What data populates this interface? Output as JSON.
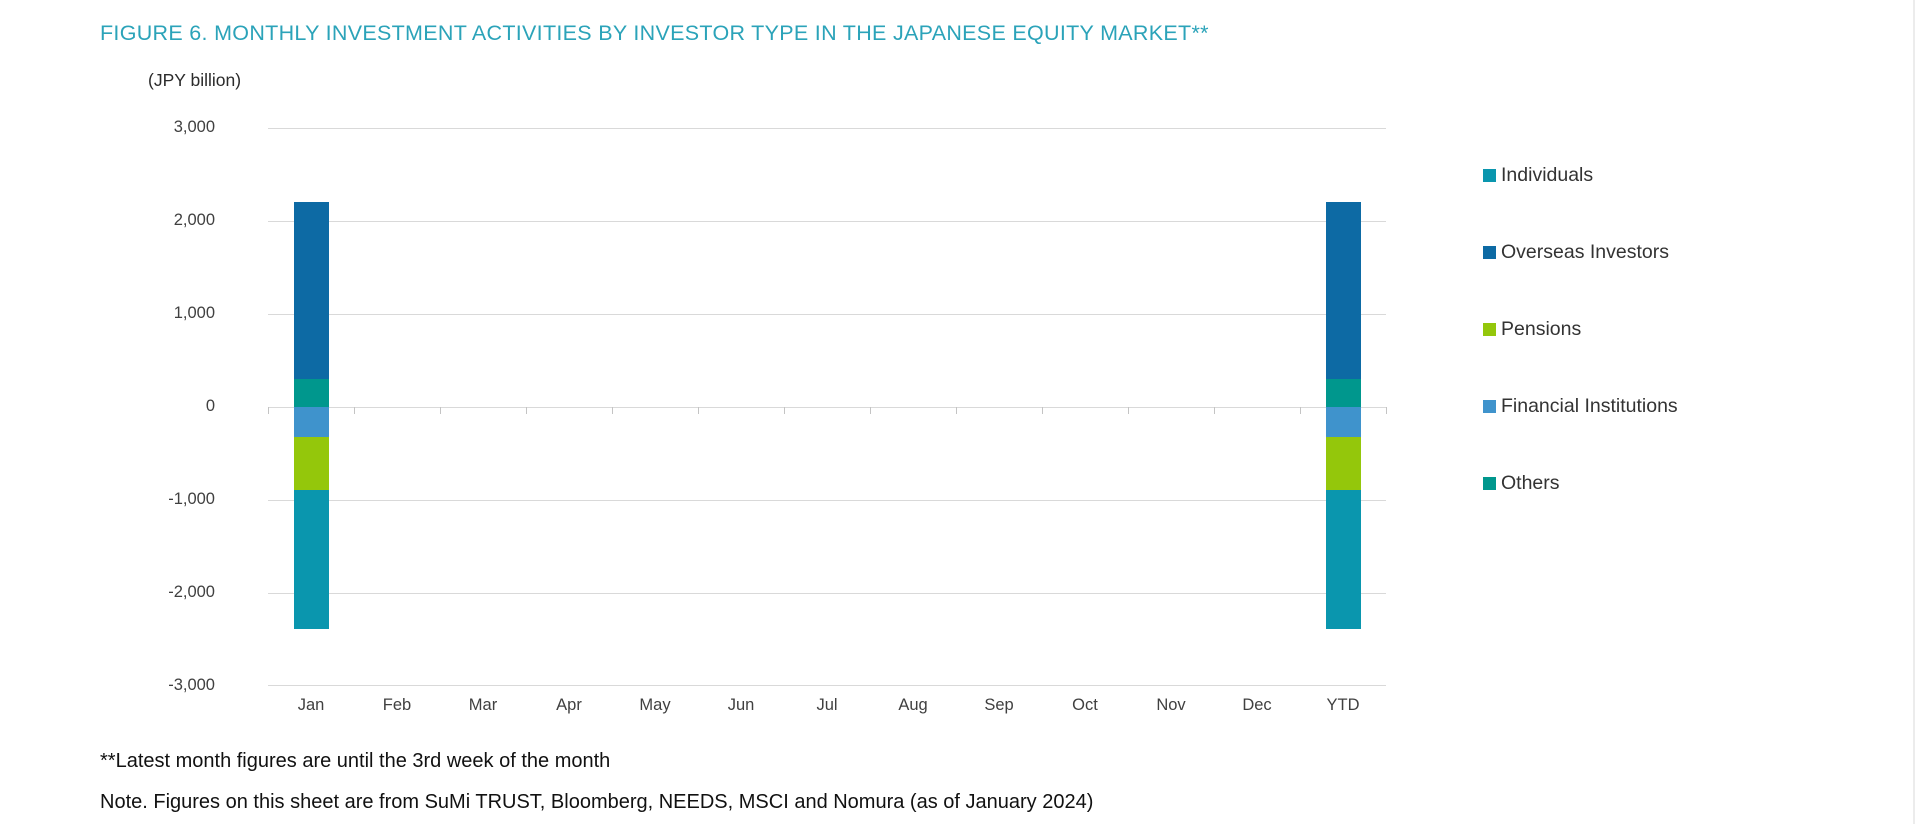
{
  "title": "FIGURE 6. MONTHLY INVESTMENT ACTIVITIES BY INVESTOR TYPE IN THE JAPANESE EQUITY MARKET**",
  "axis_unit_label": "(JPY billion)",
  "footnotes": {
    "line1": "**Latest month figures are until the 3rd week of the month",
    "line2": "Note. Figures on this sheet are from SuMi TRUST, Bloomberg, NEEDS, MSCI and Nomura (as of January 2024)"
  },
  "colors": {
    "title": "#2ba3b9",
    "grid": "#d9d9d9",
    "axis_text": "#404040",
    "legend_text": "#333333"
  },
  "chart_data": {
    "type": "bar",
    "stacked": true,
    "title": "FIGURE 6. MONTHLY INVESTMENT ACTIVITIES BY INVESTOR TYPE IN THE JAPANESE EQUITY MARKET**",
    "ylabel": "(JPY billion)",
    "xlabel": "",
    "categories": [
      "Jan",
      "Feb",
      "Mar",
      "Apr",
      "May",
      "Jun",
      "Jul",
      "Aug",
      "Sep",
      "Oct",
      "Nov",
      "Dec",
      "YTD"
    ],
    "series": [
      {
        "name": "Others",
        "color": "#00978d",
        "values": [
          300,
          0,
          0,
          0,
          0,
          0,
          0,
          0,
          0,
          0,
          0,
          0,
          300
        ]
      },
      {
        "name": "Overseas Investors",
        "color": "#0d6aa4",
        "values": [
          1900,
          0,
          0,
          0,
          0,
          0,
          0,
          0,
          0,
          0,
          0,
          0,
          1900
        ]
      },
      {
        "name": "Financial Institutions",
        "color": "#3f93cc",
        "values": [
          -320,
          0,
          0,
          0,
          0,
          0,
          0,
          0,
          0,
          0,
          0,
          0,
          -320
        ]
      },
      {
        "name": "Pensions",
        "color": "#94c70b",
        "values": [
          -570,
          0,
          0,
          0,
          0,
          0,
          0,
          0,
          0,
          0,
          0,
          0,
          -570
        ]
      },
      {
        "name": "Individuals",
        "color": "#0a96ae",
        "values": [
          -1500,
          0,
          0,
          0,
          0,
          0,
          0,
          0,
          0,
          0,
          0,
          0,
          -1500
        ]
      }
    ],
    "legend_order": [
      "Individuals",
      "Overseas Investors",
      "Pensions",
      "Financial Institutions",
      "Others"
    ],
    "legend_position": "right",
    "ylim": [
      -3000,
      3000
    ],
    "yticks": [
      3000,
      2000,
      1000,
      0,
      -1000,
      -2000,
      -3000
    ],
    "grid": true
  }
}
